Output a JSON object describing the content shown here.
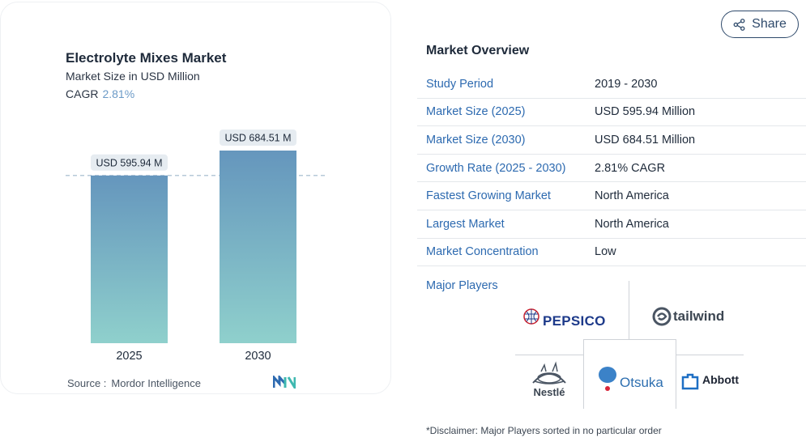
{
  "chart_card": {
    "title": "Electrolyte Mixes Market",
    "subtitle": "Market Size in USD Million",
    "cagr_label": "CAGR",
    "cagr_value": "2.81%",
    "source_label": "Source :",
    "source_value": "Mordor Intelligence",
    "colors": {
      "bar_top": "#6596bd",
      "bar_bottom": "#8fd0cc",
      "cagr_accent": "#6b9ac7"
    }
  },
  "chart_data": {
    "type": "bar",
    "categories": [
      "2025",
      "2030"
    ],
    "values": [
      595.94,
      684.51
    ],
    "data_labels": [
      "USD 595.94 M",
      "USD 684.51 M"
    ],
    "title": "Electrolyte Mixes Market",
    "subtitle": "Market Size in USD Million",
    "xlabel": "",
    "ylabel": "",
    "ylim": [
      0,
      684.51
    ],
    "reference_line": 595.94,
    "grid": false
  },
  "share": {
    "label": "Share",
    "icon": "share-icon"
  },
  "overview": {
    "title": "Market Overview",
    "rows": [
      {
        "key": "Study Period",
        "value": "2019 - 2030"
      },
      {
        "key": "Market Size (2025)",
        "value": "USD 595.94 Million"
      },
      {
        "key": "Market Size (2030)",
        "value": "USD 684.51 Million"
      },
      {
        "key": "Growth Rate (2025 - 2030)",
        "value": "2.81% CAGR"
      },
      {
        "key": "Fastest Growing Market",
        "value": "North America"
      },
      {
        "key": "Largest Market",
        "value": "North America"
      },
      {
        "key": "Market Concentration",
        "value": "Low"
      }
    ],
    "major_players_label": "Major Players",
    "players": [
      "PEPSICO",
      "tailwind",
      "Nestlé",
      "Otsuka",
      "Abbott"
    ],
    "disclaimer": "*Disclaimer: Major Players sorted in no particular order"
  }
}
